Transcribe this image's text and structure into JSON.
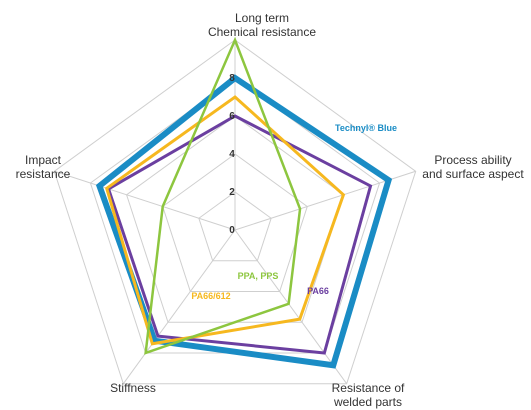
{
  "chart_data": {
    "type": "radar",
    "axes": [
      "Long term\nChemical resistance",
      "Process ability\nand surface aspect",
      "Resistance of\nwelded parts",
      "Stiffness",
      "Impact\nresistance"
    ],
    "ticks": [
      0,
      2,
      4,
      6,
      8
    ],
    "range": [
      0,
      10
    ],
    "grid": true,
    "series": [
      {
        "name": "Technyl® Blue",
        "color": "#1a8cc5",
        "values": [
          8,
          8.5,
          8.8,
          7.2,
          7.5
        ]
      },
      {
        "name": "PA66",
        "color": "#6b3fa0",
        "values": [
          6,
          7.5,
          8,
          6.9,
          7
        ]
      },
      {
        "name": "PA66/612",
        "color": "#f6b81f",
        "values": [
          7,
          6,
          5.8,
          7.4,
          7.1
        ]
      },
      {
        "name": "PPA, PPS",
        "color": "#8dc63f",
        "values": [
          10,
          3.6,
          4.8,
          8,
          4
        ]
      }
    ]
  }
}
